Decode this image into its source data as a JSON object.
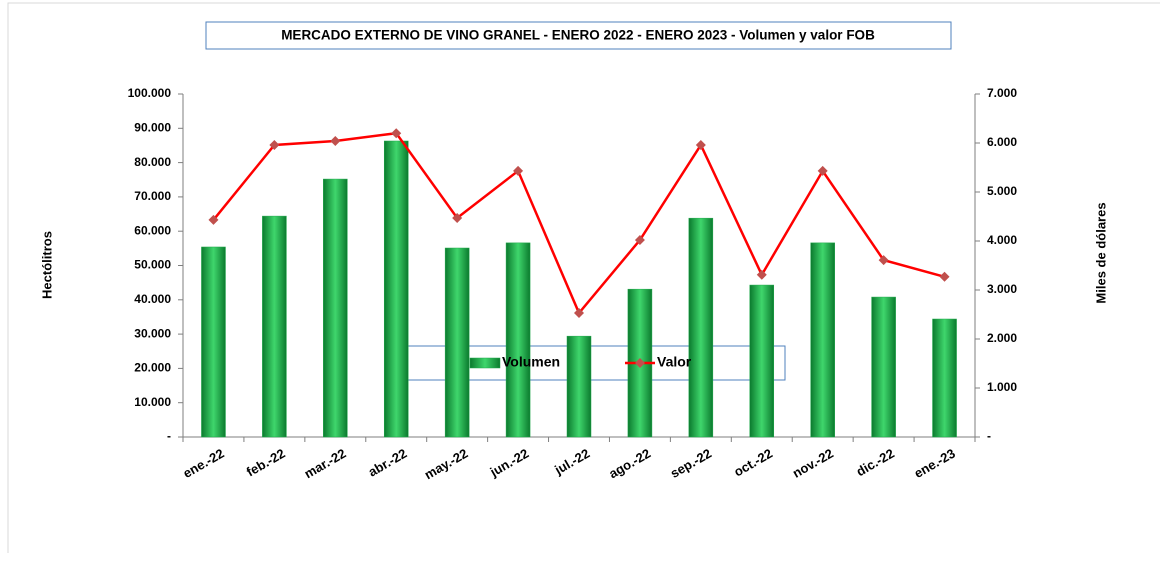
{
  "chart_data": {
    "type": "bar_line",
    "title": "MERCADO EXTERNO DE VINO GRANEL - ENERO 2022 - ENERO 2023 - Volumen y valor FOB",
    "y_label": "Hectólitros",
    "y2_label": "Miles de dólares",
    "categories": [
      "ene.-22",
      "feb.-22",
      "mar.-22",
      "abr.-22",
      "may.-22",
      "jun.-22",
      "jul.-22",
      "ago.-22",
      "sep.-22",
      "oct.-22",
      "nov.-22",
      "dic.-22",
      "ene.-23"
    ],
    "series": [
      {
        "name": "Volumen",
        "type": "bar",
        "color": "#1fa84a",
        "values": [
          55400,
          64400,
          75200,
          86300,
          55100,
          56600,
          29400,
          43100,
          63800,
          44300,
          56600,
          40800,
          34400
        ]
      },
      {
        "name": "Valor",
        "type": "line",
        "axis": "y2",
        "color": "#ff0000",
        "marker_color": "#c0504d",
        "values": [
          4430,
          5960,
          6040,
          6200,
          4470,
          5430,
          2530,
          4020,
          5960,
          3310,
          5430,
          3610,
          3270
        ]
      }
    ],
    "ylim": [
      0,
      100000
    ],
    "yticks": [
      {
        "value": 0,
        "label": "-"
      },
      {
        "value": 10000,
        "label": "10.000"
      },
      {
        "value": 20000,
        "label": "20.000"
      },
      {
        "value": 30000,
        "label": "30.000"
      },
      {
        "value": 40000,
        "label": "40.000"
      },
      {
        "value": 50000,
        "label": "50.000"
      },
      {
        "value": 60000,
        "label": "60.000"
      },
      {
        "value": 70000,
        "label": "70.000"
      },
      {
        "value": 80000,
        "label": "80.000"
      },
      {
        "value": 90000,
        "label": "90.000"
      },
      {
        "value": 100000,
        "label": "100.000"
      }
    ],
    "y2lim": [
      0,
      7000
    ],
    "y2ticks": [
      {
        "value": 0,
        "label": "-"
      },
      {
        "value": 1000,
        "label": "1.000"
      },
      {
        "value": 2000,
        "label": "2.000"
      },
      {
        "value": 3000,
        "label": "3.000"
      },
      {
        "value": 4000,
        "label": "4.000"
      },
      {
        "value": 5000,
        "label": "5.000"
      },
      {
        "value": 6000,
        "label": "6.000"
      },
      {
        "value": 7000,
        "label": "7.000"
      }
    ],
    "grid": false,
    "legend": "bottom"
  }
}
